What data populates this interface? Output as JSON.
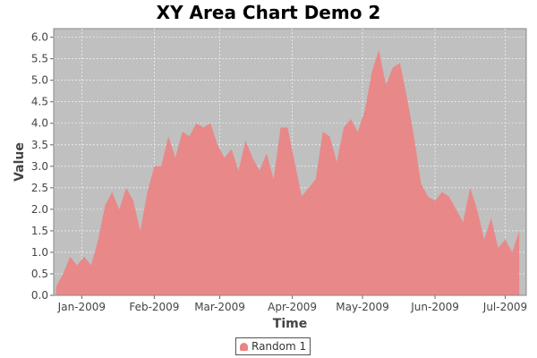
{
  "chart_data": {
    "type": "area",
    "title": "XY Area Chart Demo 2",
    "xlabel": "Time",
    "ylabel": "Value",
    "x_ticks": [
      "Jan-2009",
      "Feb-2009",
      "Mar-2009",
      "Apr-2009",
      "May-2009",
      "Jun-2009",
      "Jul-2009"
    ],
    "y_ticks": [
      "0.0",
      "0.5",
      "1.0",
      "1.5",
      "2.0",
      "2.5",
      "3.0",
      "3.5",
      "4.0",
      "4.5",
      "5.0",
      "5.5",
      "6.0"
    ],
    "ylim": [
      0,
      6.2
    ],
    "xlim": [
      "2008-12-20",
      "2009-07-10"
    ],
    "grid": true,
    "plot_background": "#c0c0c0",
    "legend_position": "bottom",
    "series": [
      {
        "name": "Random 1",
        "color": "#ea8585",
        "x": [
          "2008-12-21",
          "2008-12-24",
          "2008-12-27",
          "2008-12-30",
          "2009-01-02",
          "2009-01-05",
          "2009-01-08",
          "2009-01-11",
          "2009-01-14",
          "2009-01-17",
          "2009-01-20",
          "2009-01-23",
          "2009-01-26",
          "2009-01-29",
          "2009-02-01",
          "2009-02-04",
          "2009-02-07",
          "2009-02-10",
          "2009-02-13",
          "2009-02-16",
          "2009-02-19",
          "2009-02-22",
          "2009-02-25",
          "2009-02-28",
          "2009-03-03",
          "2009-03-06",
          "2009-03-09",
          "2009-03-12",
          "2009-03-15",
          "2009-03-18",
          "2009-03-21",
          "2009-03-24",
          "2009-03-27",
          "2009-03-30",
          "2009-04-02",
          "2009-04-05",
          "2009-04-08",
          "2009-04-11",
          "2009-04-14",
          "2009-04-17",
          "2009-04-20",
          "2009-04-23",
          "2009-04-26",
          "2009-04-29",
          "2009-05-02",
          "2009-05-05",
          "2009-05-08",
          "2009-05-11",
          "2009-05-14",
          "2009-05-17",
          "2009-05-20",
          "2009-05-23",
          "2009-05-26",
          "2009-05-29",
          "2009-06-01",
          "2009-06-04",
          "2009-06-07",
          "2009-06-10",
          "2009-06-13",
          "2009-06-16",
          "2009-06-19",
          "2009-06-22",
          "2009-06-25",
          "2009-06-28",
          "2009-07-01",
          "2009-07-04",
          "2009-07-07"
        ],
        "values": [
          0.2,
          0.5,
          0.9,
          0.7,
          0.9,
          0.7,
          1.3,
          2.1,
          2.4,
          2.0,
          2.5,
          2.2,
          1.5,
          2.4,
          3.0,
          3.0,
          3.7,
          3.2,
          3.8,
          3.7,
          4.0,
          3.9,
          4.0,
          3.5,
          3.2,
          3.4,
          2.9,
          3.6,
          3.2,
          2.9,
          3.3,
          2.7,
          3.9,
          3.9,
          3.1,
          2.3,
          2.5,
          2.7,
          3.8,
          3.7,
          3.1,
          3.9,
          4.1,
          3.8,
          4.3,
          5.2,
          5.7,
          4.9,
          5.3,
          5.4,
          4.6,
          3.7,
          2.6,
          2.3,
          2.2,
          2.4,
          2.3,
          2.0,
          1.7,
          2.5,
          2.0,
          1.3,
          1.8,
          1.1,
          1.3,
          1.0,
          1.5
        ]
      }
    ]
  },
  "legend": {
    "label": "Random 1"
  }
}
